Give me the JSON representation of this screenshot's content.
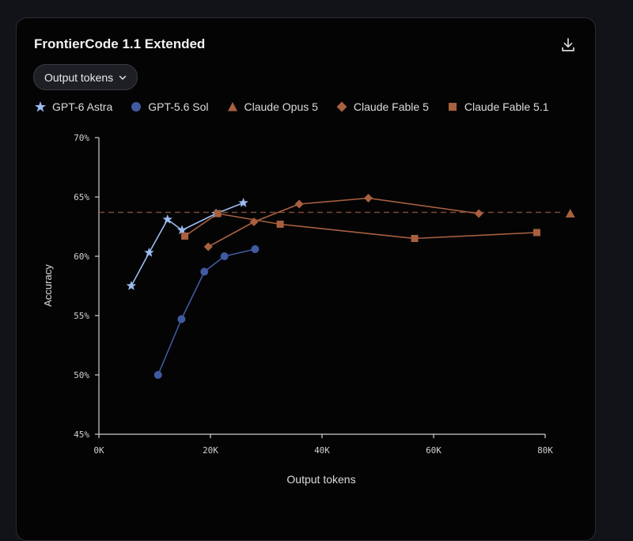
{
  "card": {
    "title": "FrontierCode 1.1 Extended",
    "download_icon": "download-icon"
  },
  "dropdown": {
    "label": "Output tokens",
    "icon": "chevron-down-icon"
  },
  "colors": {
    "gpt6_astra": "#9cbcf0",
    "gpt56_sol": "#3f5aa0",
    "claude": "#a8603f",
    "reference_line": "#7a4a35",
    "axis": "#cfcfcf",
    "background": "#040405"
  },
  "chart_data": {
    "type": "line",
    "title": "FrontierCode 1.1 Extended",
    "xlabel": "Output tokens",
    "ylabel": "Accuracy",
    "xlim": [
      0,
      80000
    ],
    "ylim": [
      45,
      70
    ],
    "x_ticks": [
      0,
      20000,
      40000,
      60000,
      80000
    ],
    "x_tick_labels": [
      "0K",
      "20K",
      "40K",
      "60K",
      "80K"
    ],
    "y_ticks": [
      45,
      50,
      55,
      60,
      65,
      70
    ],
    "y_tick_labels": [
      "45%",
      "50%",
      "55%",
      "60%",
      "65%",
      "70%"
    ],
    "grid": false,
    "legend_position": "top",
    "reference_line": {
      "y": 63.7,
      "style": "dashed"
    },
    "series": [
      {
        "name": "GPT-6 Astra",
        "marker": "star",
        "color": "#9cbcf0",
        "x": [
          5800,
          9000,
          12300,
          14900,
          21000,
          25900
        ],
        "y": [
          57.5,
          60.3,
          63.1,
          62.2,
          63.6,
          64.5
        ]
      },
      {
        "name": "GPT-5.6 Sol",
        "marker": "circle",
        "color": "#3f5aa0",
        "x": [
          10600,
          14800,
          18900,
          22500,
          28000
        ],
        "y": [
          50.0,
          54.7,
          58.7,
          60.0,
          60.6
        ]
      },
      {
        "name": "Claude Opus 5",
        "marker": "triangle",
        "color": "#a8603f",
        "x": [
          84500
        ],
        "y": [
          63.6
        ]
      },
      {
        "name": "Claude Fable 5",
        "marker": "diamond",
        "color": "#a8603f",
        "x": [
          19600,
          27800,
          35900,
          48300,
          68100
        ],
        "y": [
          60.8,
          62.9,
          64.4,
          64.9,
          63.6
        ]
      },
      {
        "name": "Claude Fable 5.1",
        "marker": "square",
        "color": "#a8603f",
        "x": [
          15400,
          21300,
          32500,
          56600,
          78500
        ],
        "y": [
          61.7,
          63.6,
          62.7,
          61.5,
          62.0
        ]
      }
    ]
  }
}
